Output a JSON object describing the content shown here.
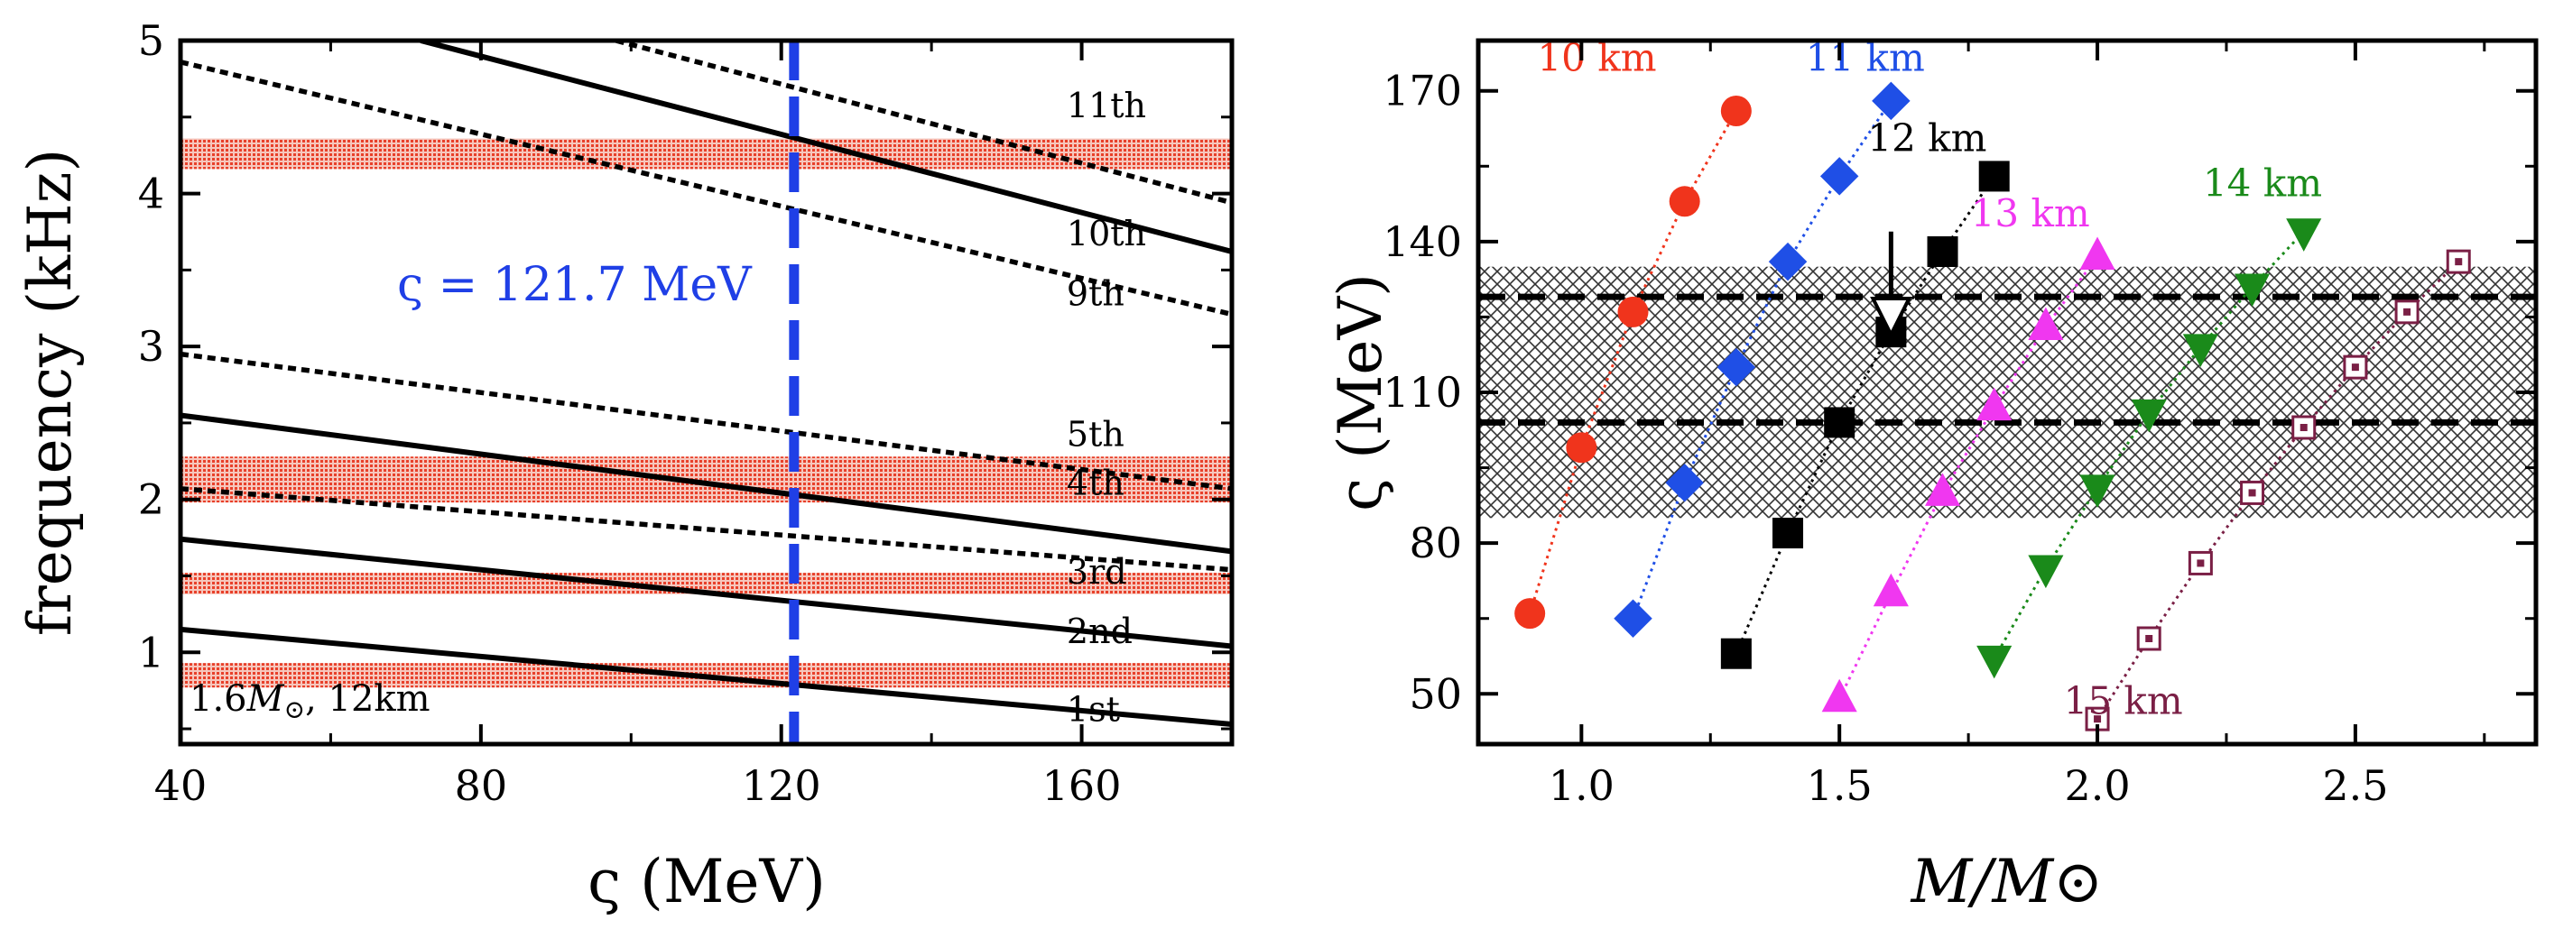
{
  "chart_data": [
    {
      "type": "line",
      "xlabel": "ς (MeV)",
      "ylabel": "frequency (kHz)",
      "xlim": [
        40,
        180
      ],
      "ylim": [
        0.4,
        5.0
      ],
      "xticks": [
        "40",
        "80",
        "120",
        "160"
      ],
      "yticks": [
        "1",
        "2",
        "3",
        "4",
        "5"
      ],
      "bands": [
        {
          "y": [
            0.77,
            0.93
          ],
          "color": "#e8402a"
        },
        {
          "y": [
            1.38,
            1.52
          ],
          "color": "#e8402a"
        },
        {
          "y": [
            1.98,
            2.28
          ],
          "color": "#e8402a"
        },
        {
          "y": [
            4.16,
            4.36
          ],
          "color": "#e8402a"
        }
      ],
      "vline": {
        "x": 121.7,
        "label": "ς = 121.7 MeV",
        "color": "#1f3fe6"
      },
      "series": [
        {
          "name": "1st",
          "style": "solid",
          "x": [
            40,
            180
          ],
          "y": [
            1.15,
            0.53
          ]
        },
        {
          "name": "2nd",
          "style": "solid",
          "x": [
            40,
            180
          ],
          "y": [
            1.74,
            1.04
          ]
        },
        {
          "name": "3rd",
          "style": "dotted",
          "x": [
            40,
            180
          ],
          "y": [
            2.07,
            1.54
          ]
        },
        {
          "name": "4th",
          "style": "solid",
          "x": [
            40,
            180
          ],
          "y": [
            2.55,
            1.66
          ]
        },
        {
          "name": "5th",
          "style": "dotted",
          "x": [
            40,
            180
          ],
          "y": [
            2.95,
            2.07
          ]
        },
        {
          "name": "9th",
          "style": "dotted",
          "x": [
            40,
            180
          ],
          "y": [
            4.86,
            3.21
          ]
        },
        {
          "name": "10th",
          "style": "solid",
          "x": [
            72,
            180
          ],
          "y": [
            5.0,
            3.62
          ]
        },
        {
          "name": "11th",
          "style": "dotted",
          "x": [
            98,
            180
          ],
          "y": [
            5.0,
            3.94
          ]
        }
      ],
      "labels": [
        {
          "text": "11th",
          "x": 158,
          "y": 4.5
        },
        {
          "text": "10th",
          "x": 158,
          "y": 3.66
        },
        {
          "text": "9th",
          "x": 158,
          "y": 3.27
        },
        {
          "text": "5th",
          "x": 158,
          "y": 2.35
        },
        {
          "text": "4th",
          "x": 158,
          "y": 2.03
        },
        {
          "text": "3rd",
          "x": 158,
          "y": 1.45
        },
        {
          "text": "2nd",
          "x": 158,
          "y": 1.06
        },
        {
          "text": "1st",
          "x": 158,
          "y": 0.55
        }
      ],
      "annotation": "1.6M⊙, 12km",
      "annotation_parts": [
        "1.6",
        "M",
        "⊙",
        ", 12km"
      ]
    },
    {
      "type": "scatter",
      "xlabel": "M/M⊙",
      "ylabel": "ς (MeV)",
      "xlim": [
        0.8,
        2.85
      ],
      "ylim": [
        40,
        180
      ],
      "xticks": [
        "1.0",
        "1.5",
        "2.0",
        "2.5"
      ],
      "yticks": [
        "50",
        "80",
        "110",
        "140",
        "170"
      ],
      "band": {
        "y": [
          85,
          135
        ]
      },
      "hlines": [
        104,
        129
      ],
      "arrow": {
        "x": 1.6,
        "y_from": 142,
        "y_to": 124
      },
      "series": [
        {
          "name": "10 km",
          "color": "#f0341c",
          "marker": "circle",
          "x": [
            0.9,
            1.0,
            1.1,
            1.2,
            1.3
          ],
          "y": [
            66,
            99,
            126,
            148,
            166
          ]
        },
        {
          "name": "11 km",
          "color": "#1f4fe6",
          "marker": "diamond",
          "x": [
            1.1,
            1.2,
            1.3,
            1.4,
            1.5,
            1.6
          ],
          "y": [
            65,
            92,
            115,
            136,
            153,
            168
          ]
        },
        {
          "name": "12 km",
          "color": "#000000",
          "marker": "square",
          "x": [
            1.3,
            1.4,
            1.5,
            1.6,
            1.7,
            1.8
          ],
          "y": [
            58,
            82,
            104,
            122,
            138,
            153
          ]
        },
        {
          "name": "13 km",
          "color": "#f037f0",
          "marker": "triangle-up",
          "x": [
            1.5,
            1.6,
            1.7,
            1.8,
            1.9,
            2.0
          ],
          "y": [
            49,
            70,
            90,
            107,
            123,
            137
          ]
        },
        {
          "name": "14 km",
          "color": "#1a8a1a",
          "marker": "triangle-down",
          "x": [
            1.8,
            1.9,
            2.0,
            2.1,
            2.2,
            2.3,
            2.4
          ],
          "y": [
            57,
            75,
            91,
            106,
            119,
            131,
            142
          ]
        },
        {
          "name": "15 km",
          "color": "#7a1f45",
          "marker": "square-open",
          "x": [
            2.0,
            2.1,
            2.2,
            2.3,
            2.4,
            2.5,
            2.6,
            2.7
          ],
          "y": [
            45,
            61,
            76,
            90,
            103,
            115,
            126,
            136
          ]
        }
      ],
      "series_labels": [
        {
          "name": "10 km",
          "x": 1.03,
          "y": 174
        },
        {
          "name": "11 km",
          "x": 1.55,
          "y": 174
        },
        {
          "name": "12 km",
          "x": 1.67,
          "y": 158
        },
        {
          "name": "13 km",
          "x": 1.87,
          "y": 143
        },
        {
          "name": "14 km",
          "x": 2.32,
          "y": 149
        },
        {
          "name": "15 km",
          "x": 2.05,
          "y": 46
        }
      ]
    }
  ]
}
